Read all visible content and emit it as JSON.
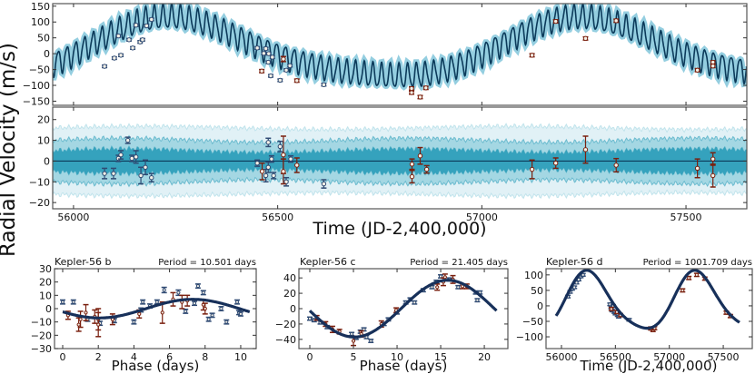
{
  "figure": {
    "ylabel": "Radial Velocity (m/s)",
    "time_xlabel": "Time (JD-2,400,000)"
  },
  "colors": {
    "model_line": "#0b3a5a",
    "model_band": "#3da6c6",
    "band_outer": "#e1f1f6",
    "band_mid": "#a4d7e3",
    "band_inner": "#35a2bd",
    "series_blue": "#2f4a73",
    "series_red": "#7a200f"
  },
  "chart_data": [
    {
      "type": "line",
      "panel": "combined-rv",
      "xlim": [
        55949,
        57649
      ],
      "ylim": [
        -163,
        158
      ],
      "yticks": [
        -150,
        -100,
        -50,
        0,
        50,
        100,
        150
      ],
      "xticks": [
        56000,
        56500,
        57000,
        57500
      ],
      "series": [
        {
          "color": "#2f4a73",
          "points": [
            [
              56076,
              -40,
              4
            ],
            [
              56100,
              -14,
              4
            ],
            [
              56110,
              56,
              4
            ],
            [
              56116,
              -5,
              4
            ],
            [
              56136,
              44,
              4
            ],
            [
              56145,
              18,
              4
            ],
            [
              56153,
              90,
              4
            ],
            [
              56163,
              37,
              4
            ],
            [
              56169,
              44,
              4
            ],
            [
              56179,
              88,
              4
            ],
            [
              56191,
              108,
              4
            ],
            [
              56450,
              18,
              4
            ],
            [
              56466,
              1,
              4
            ],
            [
              56471,
              16,
              4
            ],
            [
              56477,
              -27,
              4
            ],
            [
              56478,
              0,
              4
            ],
            [
              56483,
              -70,
              4
            ],
            [
              56487,
              -11,
              4
            ],
            [
              56506,
              -84,
              4
            ],
            [
              56521,
              -52,
              4
            ],
            [
              56530,
              -38,
              4
            ],
            [
              56613,
              -98,
              4
            ]
          ]
        },
        {
          "color": "#7a200f",
          "points": [
            [
              56461,
              -55,
              5
            ],
            [
              56514,
              -17,
              8
            ],
            [
              56547,
              -85,
              5
            ],
            [
              56828,
              -110,
              5
            ],
            [
              56828,
              -123,
              5
            ],
            [
              56849,
              -137,
              5
            ],
            [
              56863,
              -108,
              5
            ],
            [
              57123,
              -5,
              5
            ],
            [
              57181,
              102,
              5
            ],
            [
              57254,
              48,
              5
            ],
            [
              57329,
              104,
              5
            ],
            [
              57528,
              -52,
              5
            ],
            [
              57566,
              -27,
              5
            ],
            [
              57566,
              -39,
              5
            ]
          ]
        }
      ]
    },
    {
      "type": "scatter",
      "panel": "residuals",
      "xlim": [
        55949,
        57649
      ],
      "ylim": [
        -23,
        26
      ],
      "yticks": [
        -20,
        -10,
        0,
        10,
        20
      ],
      "xticks": [
        56000,
        56500,
        57000,
        57500
      ],
      "xlabel": "Time (JD-2,400,000)",
      "band_halfwidths": [
        5,
        10,
        16
      ],
      "series": [
        {
          "color": "#2f4a73",
          "points": [
            [
              56076,
              -6,
              2.5
            ],
            [
              56098,
              -6,
              2.5
            ],
            [
              56110,
              1.3,
              1.5
            ],
            [
              56116,
              3,
              2
            ],
            [
              56133,
              10,
              1.5
            ],
            [
              56143,
              1.3,
              1.5
            ],
            [
              56153,
              2,
              3
            ],
            [
              56165,
              -7,
              4
            ],
            [
              56176,
              -3,
              3.5
            ],
            [
              56191,
              -8,
              2
            ],
            [
              56450,
              -1,
              1.5
            ],
            [
              56471,
              -7,
              3
            ],
            [
              56477,
              9,
              2
            ],
            [
              56477,
              -3,
              2.5
            ],
            [
              56485,
              1,
              1.5
            ],
            [
              56490,
              -7,
              1.5
            ],
            [
              56506,
              7,
              2.5
            ],
            [
              56521,
              -10,
              2
            ],
            [
              56532,
              1,
              1.5
            ],
            [
              56613,
              -11,
              2
            ]
          ]
        },
        {
          "color": "#7a200f",
          "points": [
            [
              56462,
              -5,
              4
            ],
            [
              56514,
              3,
              9
            ],
            [
              56514,
              -5,
              6
            ],
            [
              56547,
              -2,
              3.5
            ],
            [
              56829,
              -1.5,
              2.5
            ],
            [
              56829,
              -7.5,
              3
            ],
            [
              56849,
              2.5,
              4
            ],
            [
              56865,
              -4,
              1.8
            ],
            [
              57123,
              -4,
              4.5
            ],
            [
              57181,
              -1,
              2.5
            ],
            [
              57254,
              5.5,
              6.5
            ],
            [
              57329,
              -2,
              3.2
            ],
            [
              57528,
              -3.5,
              4.5
            ],
            [
              57566,
              1,
              3
            ],
            [
              57566,
              -7,
              5.5
            ]
          ]
        }
      ]
    },
    {
      "type": "scatter",
      "panel": "kepler-56-b",
      "title": "Kepler-56 b",
      "period_label": "Period = 10.501 days",
      "xlabel": "Phase (days)",
      "xlim": [
        -0.46,
        10.87
      ],
      "ylim": [
        -30,
        30
      ],
      "xticks": [
        0,
        2,
        4,
        6,
        8,
        10
      ],
      "yticks": [
        -30,
        -20,
        -10,
        0,
        10,
        20,
        30
      ],
      "model": {
        "period": 10.501,
        "amplitude": 7,
        "peak_phase": 7.3,
        "offset": 0
      },
      "series": [
        {
          "color": "#2f4a73",
          "points": [
            [
              0.0,
              5,
              1.5
            ],
            [
              0.6,
              5,
              1.5
            ],
            [
              1.4,
              -8,
              1.5
            ],
            [
              2.1,
              -11,
              1.5
            ],
            [
              2.9,
              -9,
              1.5
            ],
            [
              4.0,
              -10,
              1.5
            ],
            [
              4.4,
              -1,
              1.5
            ],
            [
              4.5,
              5,
              1.5
            ],
            [
              4.9,
              2,
              1.5
            ],
            [
              5.3,
              5,
              1.5
            ],
            [
              5.7,
              14,
              2
            ],
            [
              6.5,
              12,
              2
            ],
            [
              6.9,
              -2,
              1.5
            ],
            [
              7.4,
              4,
              1.5
            ],
            [
              7.6,
              17,
              1.5
            ],
            [
              7.9,
              12,
              1.5
            ],
            [
              8.2,
              -8,
              1.5
            ],
            [
              8.4,
              -5,
              1.5
            ],
            [
              8.9,
              0,
              1.5
            ],
            [
              9.2,
              -10,
              1.5
            ],
            [
              9.8,
              5,
              1.5
            ],
            [
              9.9,
              -3,
              1.5
            ],
            [
              10.0,
              -4,
              1.5
            ]
          ]
        },
        {
          "color": "#7a200f",
          "points": [
            [
              0.3,
              -5,
              3
            ],
            [
              0.9,
              -12,
              5
            ],
            [
              1.0,
              -8,
              6
            ],
            [
              1.3,
              -3,
              6
            ],
            [
              1.8,
              -6,
              5
            ],
            [
              2.0,
              -8,
              8
            ],
            [
              2.0,
              -12,
              9
            ],
            [
              2.8,
              -8,
              4
            ],
            [
              4.3,
              -4,
              3
            ],
            [
              5.6,
              -3,
              8
            ],
            [
              6.2,
              7,
              5
            ],
            [
              6.7,
              5,
              5
            ],
            [
              7.0,
              6,
              4
            ],
            [
              7.9,
              3,
              4
            ],
            [
              8.0,
              0,
              4
            ]
          ]
        }
      ]
    },
    {
      "type": "scatter",
      "panel": "kepler-56-c",
      "title": "Kepler-56 c",
      "period_label": "Period = 21.405 days",
      "xlabel": "Phase (days)",
      "xlim": [
        -1.25,
        22.7
      ],
      "ylim": [
        -52,
        52
      ],
      "xticks": [
        0,
        5,
        10,
        15,
        20
      ],
      "yticks": [
        -40,
        -20,
        0,
        20,
        40
      ],
      "model": {
        "period": 21.405,
        "amplitude": 37,
        "peak_phase": 15.8,
        "offset": 0
      },
      "series": [
        {
          "color": "#2f4a73",
          "points": [
            [
              0,
              -13,
              2
            ],
            [
              0.5,
              -15,
              2
            ],
            [
              1.2,
              -18,
              2
            ],
            [
              2.0,
              -24,
              2
            ],
            [
              4.8,
              -33,
              2
            ],
            [
              5.3,
              -38,
              2
            ],
            [
              5.8,
              -30,
              2
            ],
            [
              6.2,
              -27,
              2
            ],
            [
              6.5,
              -37,
              2
            ],
            [
              7.0,
              -42,
              2
            ],
            [
              8.5,
              -20,
              2
            ],
            [
              9.0,
              -14,
              2
            ],
            [
              10.0,
              -5,
              2
            ],
            [
              11,
              8,
              2
            ],
            [
              11.5,
              12,
              2
            ],
            [
              12.0,
              8,
              2
            ],
            [
              13,
              24,
              2
            ],
            [
              14,
              28,
              2
            ],
            [
              14.5,
              35,
              2
            ],
            [
              15,
              42,
              2
            ],
            [
              16,
              38,
              2
            ],
            [
              17,
              28,
              2
            ],
            [
              19,
              21,
              2
            ],
            [
              19.5,
              21,
              2
            ],
            [
              19.2,
              11,
              2
            ]
          ]
        },
        {
          "color": "#7a200f",
          "points": [
            [
              0.8,
              -12,
              3
            ],
            [
              1.8,
              -20,
              3
            ],
            [
              2.6,
              -27,
              4
            ],
            [
              3.4,
              -30,
              3
            ],
            [
              5.0,
              -42,
              6
            ],
            [
              5.9,
              -33,
              4
            ],
            [
              8.2,
              -20,
              4
            ],
            [
              9.9,
              -2,
              3
            ],
            [
              14.6,
              28,
              4
            ],
            [
              15.3,
              35,
              5
            ],
            [
              15.5,
              41,
              4
            ],
            [
              16.4,
              38,
              5
            ],
            [
              17.5,
              29,
              3
            ],
            [
              18,
              29,
              3
            ]
          ]
        }
      ]
    },
    {
      "type": "scatter",
      "panel": "kepler-56-d",
      "title": "Kepler-56 d",
      "period_label": "Period = 1001.709 days",
      "xlabel": "Time (JD-2,400,000)",
      "xlim": [
        55857,
        57769
      ],
      "ylim": [
        -138,
        120
      ],
      "xticks": [
        56000,
        56500,
        57000,
        57500
      ],
      "yticks": [
        -100,
        -50,
        0,
        50,
        100
      ],
      "model": {
        "period": 1001.709,
        "amplitude": 95,
        "peak_time": 56250,
        "offset": 17
      },
      "series": [
        {
          "color": "#2f4a73",
          "points": [
            [
              56060,
              30,
              4
            ],
            [
              56080,
              45,
              4
            ],
            [
              56100,
              55,
              4
            ],
            [
              56120,
              60,
              4
            ],
            [
              56140,
              75,
              4
            ],
            [
              56160,
              85,
              4
            ],
            [
              56180,
              95,
              4
            ],
            [
              56200,
              100,
              4
            ],
            [
              56450,
              5,
              4
            ],
            [
              56460,
              -5,
              4
            ],
            [
              56470,
              -15,
              4
            ],
            [
              56480,
              0,
              4
            ],
            [
              56490,
              -20,
              4
            ],
            [
              56500,
              -25,
              4
            ],
            [
              56520,
              -30,
              4
            ],
            [
              56530,
              -35,
              4
            ],
            [
              56627,
              -45,
              4
            ]
          ]
        },
        {
          "color": "#7a200f",
          "points": [
            [
              56462,
              -10,
              5
            ],
            [
              56514,
              -20,
              5
            ],
            [
              56547,
              -30,
              5
            ],
            [
              56828,
              -73,
              5
            ],
            [
              56849,
              -78,
              5
            ],
            [
              56863,
              -72,
              5
            ],
            [
              57123,
              50,
              5
            ],
            [
              57181,
              90,
              5
            ],
            [
              57254,
              100,
              5
            ],
            [
              57329,
              88,
              5
            ],
            [
              57528,
              -22,
              5
            ],
            [
              57566,
              -33,
              5
            ]
          ]
        }
      ]
    }
  ]
}
